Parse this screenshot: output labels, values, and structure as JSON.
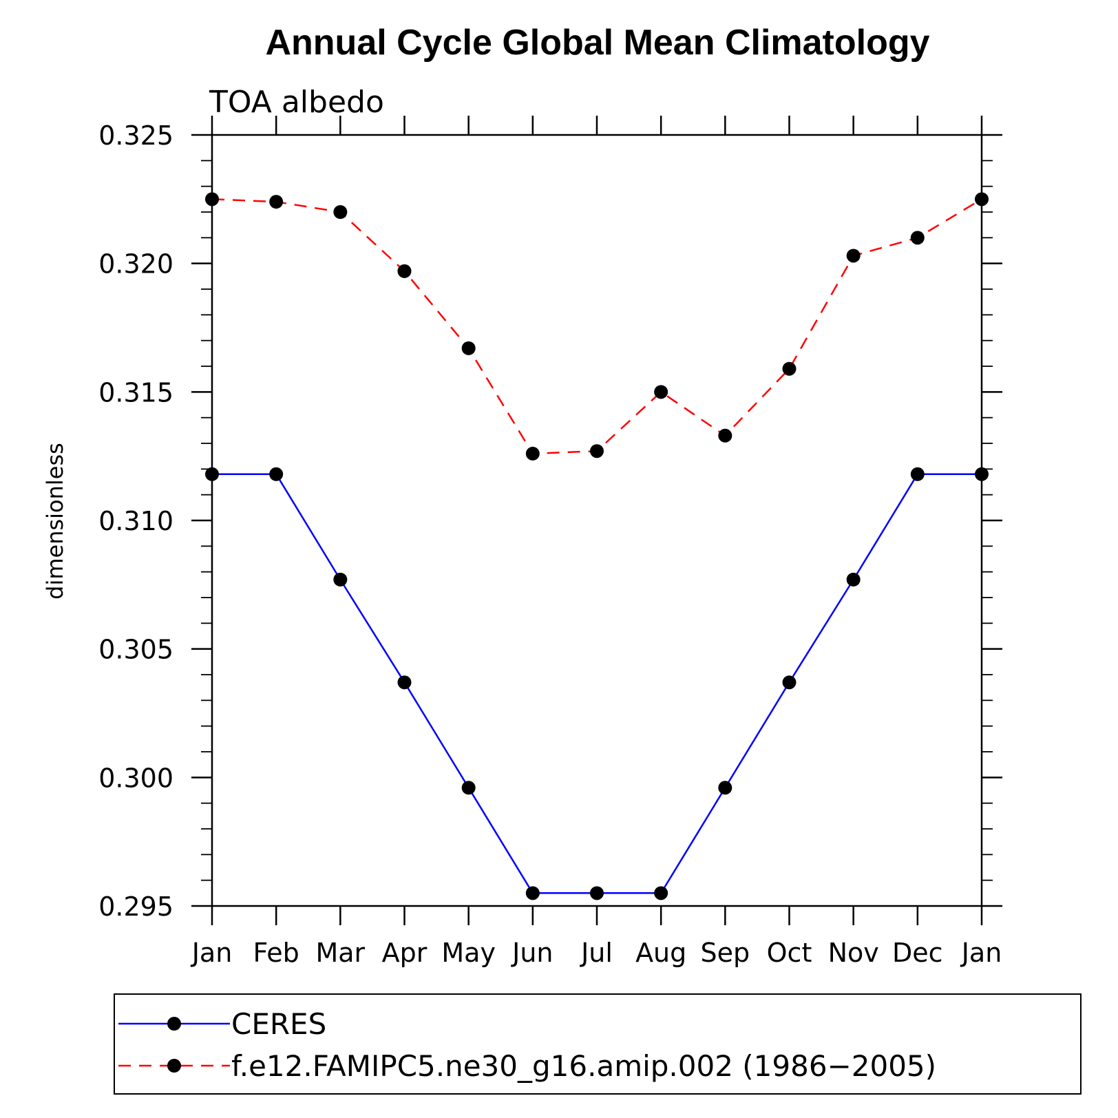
{
  "chart_data": {
    "type": "line",
    "title": "Annual Cycle Global Mean Climatology",
    "subtitle": "TOA albedo",
    "xlabel": "",
    "ylabel": "dimensionless",
    "categories": [
      "Jan",
      "Feb",
      "Mar",
      "Apr",
      "May",
      "Jun",
      "Jul",
      "Aug",
      "Sep",
      "Oct",
      "Nov",
      "Dec",
      "Jan"
    ],
    "ylim": [
      0.295,
      0.325
    ],
    "yticks": [
      "0.295",
      "0.300",
      "0.305",
      "0.310",
      "0.315",
      "0.320",
      "0.325"
    ],
    "grid": false,
    "legend_placement": "bottom",
    "series": [
      {
        "name": "CERES",
        "color": "#0000ff",
        "dash": "solid",
        "values": [
          0.3118,
          0.3118,
          0.3077,
          0.3037,
          0.2996,
          0.2955,
          0.2955,
          0.2955,
          0.2996,
          0.3037,
          0.3077,
          0.3118,
          0.3118
        ]
      },
      {
        "name": "f.e12.FAMIPC5.ne30_g16.amip.002 (1986−2005)",
        "color": "#ff0000",
        "dash": "dashed",
        "values": [
          0.3225,
          0.3224,
          0.322,
          0.3197,
          0.3167,
          0.3126,
          0.3127,
          0.315,
          0.3133,
          0.3159,
          0.3203,
          0.321,
          0.3225
        ]
      }
    ]
  }
}
